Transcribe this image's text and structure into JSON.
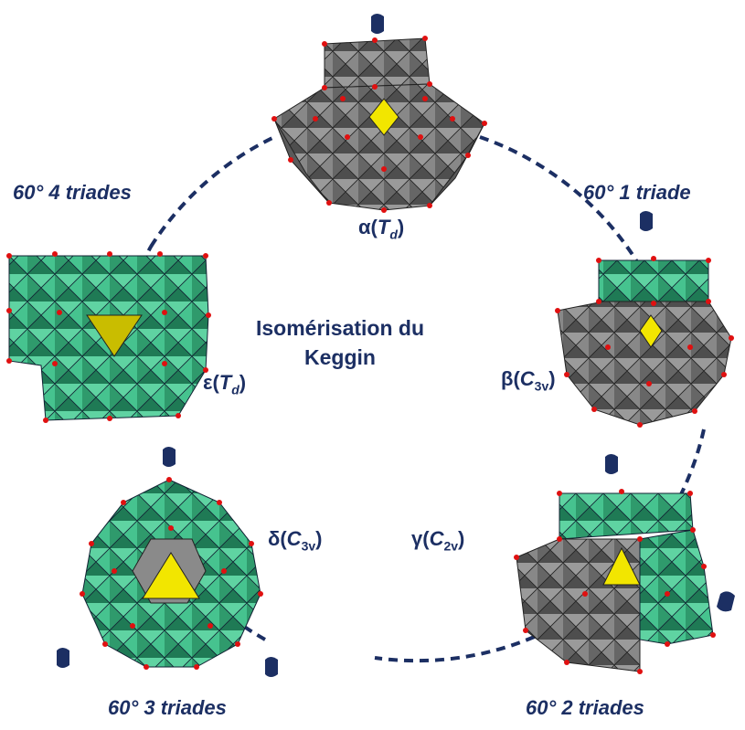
{
  "diagram": {
    "title_line1": "Isomérisation du",
    "title_line2": "Keggin",
    "rotation_labels": {
      "four_triads": "60° 4 triades",
      "one_triad": "60° 1 triade",
      "three_triads": "60° 3 triades",
      "two_triads": "60° 2 triades"
    },
    "isomers": {
      "alpha": {
        "letter": "α",
        "symmetry": "T",
        "sub": "d"
      },
      "beta": {
        "letter": "β",
        "symmetry": "C",
        "sub": "3v"
      },
      "gamma": {
        "letter": "γ",
        "symmetry": "C",
        "sub": "2v"
      },
      "delta": {
        "letter": "δ",
        "symmetry": "C",
        "sub": "3v"
      },
      "epsilon": {
        "letter": "ε",
        "symmetry": "T",
        "sub": "d"
      }
    },
    "colors": {
      "gray_polyhedra": "#6f6f6f",
      "green_polyhedra": "#3cbf8a",
      "central_tetrahedron": "#f2e600",
      "oxygen_dots": "#e01010",
      "dashed_ring": "#1c2f63"
    }
  }
}
